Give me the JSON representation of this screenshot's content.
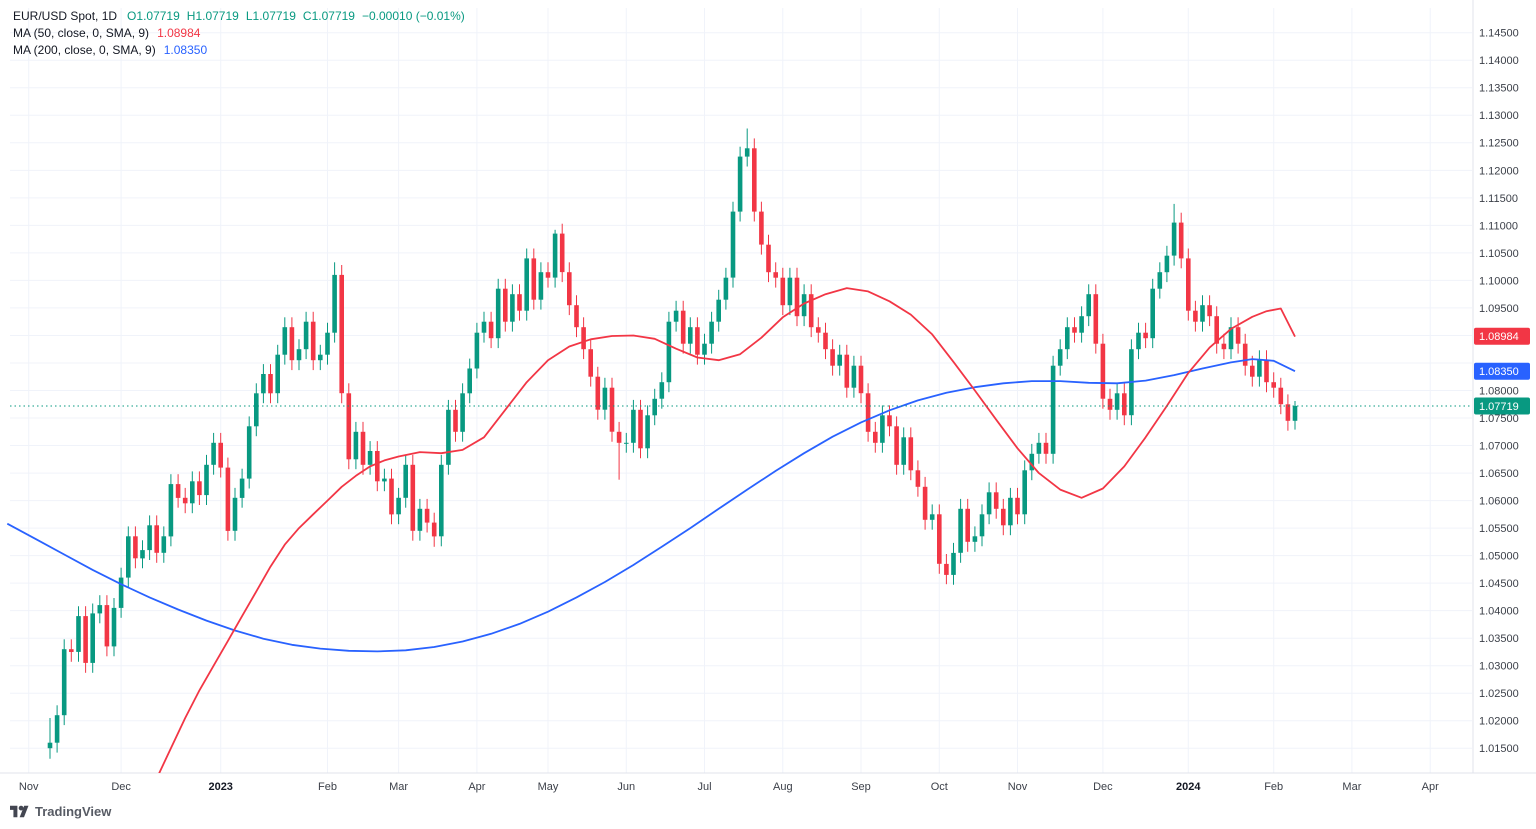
{
  "legend": {
    "symbol": "EUR/USD Spot, 1D",
    "o_label": "O",
    "o": "1.07719",
    "h_label": "H",
    "h": "1.07719",
    "l_label": "L",
    "l": "1.07719",
    "c_label": "C",
    "c": "1.07719",
    "change": "−0.00010 (−0.01%)",
    "ma50_label": "MA (50, close, 0, SMA, 9)",
    "ma50_value": "1.08984",
    "ma200_label": "MA (200, close, 0, SMA, 9)",
    "ma200_value": "1.08350"
  },
  "footer": {
    "brand": "TradingView"
  },
  "colors": {
    "up": "#089981",
    "down": "#F23645",
    "ma50": "#F23645",
    "ma200": "#2962FF",
    "last": "#089981",
    "grid": "#F0F3FA",
    "separator": "#E0E3EB",
    "axis_text": "#3C4049",
    "bg": "#FFFFFF"
  },
  "chart_data": {
    "type": "candlestick",
    "title": "EUR/USD Spot, 1D",
    "last_price": 1.07719,
    "ma50_last": 1.08984,
    "ma200_last": 1.0835,
    "y_axis": {
      "view_min": 1.0105,
      "view_max": 1.1495,
      "ticks": [
        1.015,
        1.02,
        1.025,
        1.03,
        1.035,
        1.04,
        1.045,
        1.05,
        1.055,
        1.06,
        1.065,
        1.07,
        1.075,
        1.08,
        1.085,
        1.09,
        1.095,
        1.1,
        1.105,
        1.11,
        1.115,
        1.12,
        1.125,
        1.13,
        1.135,
        1.14,
        1.145
      ]
    },
    "x_axis": {
      "ticks": [
        {
          "label": "Nov",
          "idx": -3,
          "bold": false
        },
        {
          "label": "Dec",
          "idx": 10,
          "bold": false
        },
        {
          "label": "2023",
          "idx": 24,
          "bold": true
        },
        {
          "label": "Feb",
          "idx": 39,
          "bold": false
        },
        {
          "label": "Mar",
          "idx": 49,
          "bold": false
        },
        {
          "label": "Apr",
          "idx": 60,
          "bold": false
        },
        {
          "label": "May",
          "idx": 70,
          "bold": false
        },
        {
          "label": "Jun",
          "idx": 81,
          "bold": false
        },
        {
          "label": "Jul",
          "idx": 92,
          "bold": false
        },
        {
          "label": "Aug",
          "idx": 103,
          "bold": false
        },
        {
          "label": "Sep",
          "idx": 114,
          "bold": false
        },
        {
          "label": "Oct",
          "idx": 125,
          "bold": false
        },
        {
          "label": "Nov",
          "idx": 136,
          "bold": false
        },
        {
          "label": "Dec",
          "idx": 148,
          "bold": false
        },
        {
          "label": "2024",
          "idx": 160,
          "bold": true
        },
        {
          "label": "Feb",
          "idx": 172,
          "bold": false
        },
        {
          "label": "Mar",
          "idx": 183,
          "bold": false
        },
        {
          "label": "Apr",
          "idx": 194,
          "bold": false
        }
      ]
    },
    "candles": {
      "first_open": 1.015,
      "wick": 0.0018,
      "closes": [
        1.016,
        1.021,
        1.033,
        1.0325,
        1.039,
        1.0305,
        1.0395,
        1.041,
        1.0335,
        1.0405,
        1.046,
        1.0535,
        1.0495,
        1.051,
        1.0555,
        1.0505,
        1.0535,
        1.063,
        1.0605,
        1.0595,
        1.0635,
        1.061,
        1.0665,
        1.0705,
        1.066,
        1.0545,
        1.0605,
        1.064,
        1.0735,
        1.0795,
        1.083,
        1.0795,
        1.0865,
        1.0915,
        1.0855,
        1.0875,
        1.0925,
        1.0855,
        1.0865,
        1.0905,
        1.101,
        1.0795,
        1.0675,
        1.0725,
        1.0665,
        1.069,
        1.0635,
        1.064,
        1.0575,
        1.0605,
        1.0665,
        1.0545,
        1.0585,
        1.056,
        1.0535,
        1.0665,
        1.0765,
        1.0725,
        1.0795,
        1.084,
        1.0905,
        1.0925,
        1.0895,
        1.0985,
        1.0925,
        1.0975,
        1.0945,
        1.104,
        1.0965,
        1.1015,
        1.1005,
        1.1085,
        1.1015,
        1.0955,
        1.0915,
        1.0875,
        1.0825,
        1.0765,
        1.0805,
        1.0725,
        1.0705,
        1.0705,
        1.0765,
        1.0695,
        1.0755,
        1.0785,
        1.0815,
        1.0925,
        1.0945,
        1.0885,
        1.0915,
        1.0865,
        1.0885,
        1.0925,
        1.0965,
        1.1005,
        1.1125,
        1.1225,
        1.124,
        1.1125,
        1.1065,
        1.1015,
        1.1005,
        1.0955,
        1.1005,
        1.0935,
        1.0975,
        1.0915,
        1.0905,
        1.0875,
        1.0845,
        1.0865,
        1.0805,
        1.0845,
        1.0795,
        1.0725,
        1.0705,
        1.0755,
        1.0735,
        1.0665,
        1.0715,
        1.0655,
        1.0625,
        1.0565,
        1.0575,
        1.0485,
        1.0465,
        1.0505,
        1.0585,
        1.0525,
        1.0535,
        1.0575,
        1.0615,
        1.0585,
        1.0555,
        1.0605,
        1.0575,
        1.0655,
        1.0685,
        1.0705,
        1.0685,
        1.0845,
        1.0875,
        1.0915,
        1.0905,
        1.0935,
        1.0975,
        1.0885,
        1.0785,
        1.0765,
        1.0795,
        1.0755,
        1.0875,
        1.0905,
        1.0895,
        1.0985,
        1.1015,
        1.1045,
        1.1105,
        1.104,
        1.0945,
        1.0925,
        1.0955,
        1.0935,
        1.0885,
        1.0875,
        1.0915,
        1.0885,
        1.0845,
        1.0825,
        1.0855,
        1.0815,
        1.0805,
        1.0775,
        1.0745,
        1.0772
      ],
      "overrides": {
        "0": {
          "l": 1.0131,
          "h": 1.0205
        },
        "40": {
          "h": 1.1033
        },
        "54": {
          "l": 1.0516
        },
        "71": {
          "h": 1.1092
        },
        "80": {
          "l": 1.0638
        },
        "98": {
          "h": 1.1276
        },
        "126": {
          "l": 1.0448
        },
        "158": {
          "h": 1.1139
        },
        "175": {
          "h": 1.0781,
          "l": 1.0729
        }
      }
    },
    "ma50_points": [
      [
        13,
        1.004
      ],
      [
        15,
        1.0095
      ],
      [
        17,
        1.015
      ],
      [
        19,
        1.0205
      ],
      [
        21,
        1.0255
      ],
      [
        23,
        1.03
      ],
      [
        25,
        1.0345
      ],
      [
        27,
        1.039
      ],
      [
        29,
        1.0435
      ],
      [
        31,
        1.048
      ],
      [
        33,
        1.052
      ],
      [
        35,
        1.055
      ],
      [
        37,
        1.0575
      ],
      [
        39,
        1.06
      ],
      [
        41,
        1.0625
      ],
      [
        43,
        1.0645
      ],
      [
        45,
        1.0662
      ],
      [
        47,
        1.0673
      ],
      [
        49,
        1.068
      ],
      [
        52,
        1.0688
      ],
      [
        55,
        1.0686
      ],
      [
        58,
        1.0692
      ],
      [
        61,
        1.0715
      ],
      [
        64,
        1.0765
      ],
      [
        67,
        1.0815
      ],
      [
        70,
        1.0855
      ],
      [
        73,
        1.088
      ],
      [
        76,
        1.0893
      ],
      [
        79,
        1.0899
      ],
      [
        82,
        1.09
      ],
      [
        85,
        1.0894
      ],
      [
        88,
        1.0876
      ],
      [
        91,
        1.086
      ],
      [
        94,
        1.0855
      ],
      [
        97,
        1.0866
      ],
      [
        100,
        1.0896
      ],
      [
        103,
        1.0933
      ],
      [
        106,
        1.0958
      ],
      [
        109,
        1.0975
      ],
      [
        112,
        1.0986
      ],
      [
        115,
        1.098
      ],
      [
        118,
        1.0962
      ],
      [
        121,
        1.0938
      ],
      [
        124,
        1.0902
      ],
      [
        127,
        1.0852
      ],
      [
        130,
        1.08
      ],
      [
        133,
        1.0747
      ],
      [
        136,
        1.0695
      ],
      [
        139,
        1.065
      ],
      [
        142,
        1.062
      ],
      [
        145,
        1.0605
      ],
      [
        148,
        1.0622
      ],
      [
        151,
        1.0662
      ],
      [
        154,
        1.0715
      ],
      [
        157,
        1.0772
      ],
      [
        160,
        1.0832
      ],
      [
        163,
        1.0878
      ],
      [
        166,
        1.0912
      ],
      [
        169,
        1.0934
      ],
      [
        171,
        1.0944
      ],
      [
        173,
        1.0949
      ],
      [
        175,
        1.0898
      ]
    ],
    "ma200_points": [
      [
        -6,
        1.0558
      ],
      [
        -2,
        1.053
      ],
      [
        2,
        1.0502
      ],
      [
        6,
        1.0474
      ],
      [
        10,
        1.0448
      ],
      [
        14,
        1.0424
      ],
      [
        18,
        1.0402
      ],
      [
        22,
        1.0382
      ],
      [
        26,
        1.0364
      ],
      [
        30,
        1.0349
      ],
      [
        34,
        1.0338
      ],
      [
        38,
        1.0331
      ],
      [
        42,
        1.0327
      ],
      [
        46,
        1.0326
      ],
      [
        50,
        1.0328
      ],
      [
        54,
        1.0334
      ],
      [
        58,
        1.0344
      ],
      [
        62,
        1.0358
      ],
      [
        66,
        1.0376
      ],
      [
        70,
        1.0398
      ],
      [
        74,
        1.0424
      ],
      [
        78,
        1.0452
      ],
      [
        82,
        1.0483
      ],
      [
        86,
        1.0516
      ],
      [
        90,
        1.055
      ],
      [
        94,
        1.0585
      ],
      [
        98,
        1.062
      ],
      [
        102,
        1.0654
      ],
      [
        106,
        1.0686
      ],
      [
        110,
        1.0716
      ],
      [
        114,
        1.0742
      ],
      [
        118,
        1.0764
      ],
      [
        122,
        1.0782
      ],
      [
        126,
        1.0796
      ],
      [
        130,
        1.0806
      ],
      [
        134,
        1.0813
      ],
      [
        138,
        1.0817
      ],
      [
        142,
        1.0817
      ],
      [
        146,
        1.0814
      ],
      [
        150,
        1.0813
      ],
      [
        154,
        1.0818
      ],
      [
        158,
        1.0828
      ],
      [
        162,
        1.084
      ],
      [
        166,
        1.0851
      ],
      [
        169,
        1.0857
      ],
      [
        172,
        1.0854
      ],
      [
        175,
        1.0835
      ]
    ],
    "badges": [
      {
        "name": "ma50-badge",
        "text": "1.08984",
        "price": 1.08984,
        "color": "#F23645"
      },
      {
        "name": "ma200-badge",
        "text": "1.08350",
        "price": 1.0835,
        "color": "#2962FF"
      },
      {
        "name": "last-price-badge",
        "text": "1.07719",
        "price": 1.07719,
        "color": "#089981"
      }
    ],
    "last_price_line": {
      "price": 1.07719,
      "color": "#089981",
      "style": "dotted"
    }
  }
}
